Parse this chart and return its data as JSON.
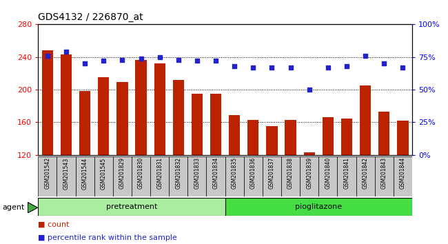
{
  "title": "GDS4132 / 226870_at",
  "categories": [
    "GSM201542",
    "GSM201543",
    "GSM201544",
    "GSM201545",
    "GSM201829",
    "GSM201830",
    "GSM201831",
    "GSM201832",
    "GSM201833",
    "GSM201834",
    "GSM201835",
    "GSM201836",
    "GSM201837",
    "GSM201838",
    "GSM201839",
    "GSM201840",
    "GSM201841",
    "GSM201842",
    "GSM201843",
    "GSM201844"
  ],
  "counts": [
    248,
    243,
    198,
    215,
    209,
    236,
    232,
    212,
    195,
    195,
    169,
    163,
    155,
    163,
    123,
    166,
    165,
    205,
    173,
    162
  ],
  "percentiles": [
    76,
    79,
    70,
    72,
    73,
    74,
    75,
    73,
    72,
    72,
    68,
    67,
    67,
    67,
    50,
    67,
    68,
    76,
    70,
    67
  ],
  "ylim_left": [
    120,
    280
  ],
  "ylim_right": [
    0,
    100
  ],
  "yticks_left": [
    120,
    160,
    200,
    240,
    280
  ],
  "yticks_right": [
    0,
    25,
    50,
    75,
    100
  ],
  "ytick_labels_right": [
    "0%",
    "25%",
    "50%",
    "75%",
    "100%"
  ],
  "bar_color": "#BB2200",
  "dot_color": "#2222CC",
  "pretreatment_count": 10,
  "pioglitazone_count": 10,
  "group_color_pre": "#AAEEA0",
  "group_color_pio": "#44DD44",
  "xtick_bg": "#C8C8C8",
  "agent_label": "agent",
  "legend_count_label": "count",
  "legend_pct_label": "percentile rank within the sample",
  "title_fontsize": 10,
  "ytick_fontsize": 8,
  "xtick_fontsize": 5.5,
  "legend_fontsize": 8
}
